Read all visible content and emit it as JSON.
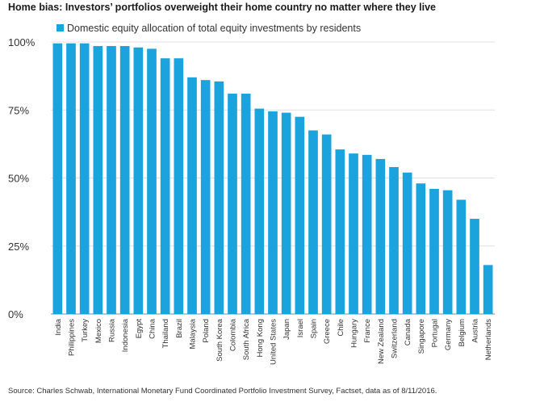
{
  "title": "Home bias: Investors’ portfolios overweight their home country no matter where they live",
  "source": "Source: Charles Schwab, International Monetary Fund Coordinated Portfolio Investment Survey, Factset, data as of 8/11/2016.",
  "colors": {
    "bar": "#1aa3dc",
    "gridline": "#e0e0e0",
    "axis": "#888888",
    "text": "#333333"
  },
  "chart_data": {
    "type": "bar",
    "title": "",
    "xlabel": "",
    "ylabel": "",
    "ylim": [
      0,
      100
    ],
    "yticks": [
      0,
      25,
      50,
      75,
      100
    ],
    "ytick_labels": [
      "0%",
      "25%",
      "50%",
      "75%",
      "100%"
    ],
    "grid": true,
    "legend_position": "top-left",
    "categories": [
      "India",
      "Philippines",
      "Turkey",
      "Mexico",
      "Russia",
      "Indonesia",
      "Egypt",
      "China",
      "Thailand",
      "Brazil",
      "Malaysia",
      "Poland",
      "South Korea",
      "Colombia",
      "South Africa",
      "Hong Kong",
      "United States",
      "Japan",
      "Israel",
      "Spain",
      "Greece",
      "Chile",
      "Hungary",
      "France",
      "New Zealand",
      "Switzerland",
      "Canada",
      "Singapore",
      "Portugal",
      "Germany",
      "Belgium",
      "Austria",
      "Netherlands"
    ],
    "series": [
      {
        "name": "Domestic equity allocation of total equity investments by residents",
        "values": [
          99.5,
          99.5,
          99.5,
          98.5,
          98.5,
          98.5,
          98,
          97.5,
          94,
          94,
          87,
          86,
          85.5,
          81,
          81,
          75.5,
          74.5,
          74,
          72.5,
          67.5,
          66,
          60.5,
          59,
          58.5,
          57,
          54,
          52,
          48,
          46,
          45.5,
          42,
          35,
          18
        ]
      }
    ]
  }
}
